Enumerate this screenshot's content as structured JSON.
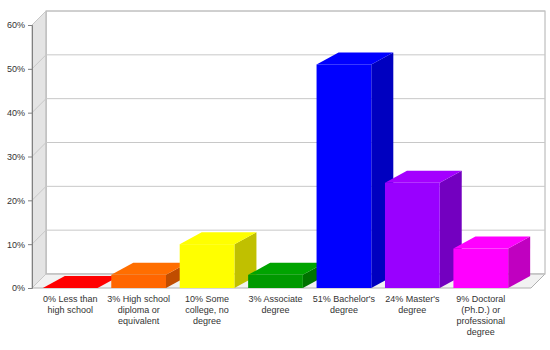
{
  "chart_data": {
    "type": "bar",
    "categories": [
      "0% Less than high school",
      "3% High school diploma or equivalent",
      "10% Some college, no degree",
      "3% Associate degree",
      "51% Bachelor's degree",
      "24% Master's degree",
      "9% Doctoral (Ph.D.) or professional degree"
    ],
    "values": [
      0,
      3,
      10,
      3,
      51,
      24,
      9
    ],
    "colors": [
      "#ff0000",
      "#ff6600",
      "#ffff00",
      "#009900",
      "#0000ff",
      "#9900ff",
      "#ff00ff"
    ],
    "ylim": [
      0,
      60
    ],
    "yticks": [
      {
        "value": 0,
        "label": "0%"
      },
      {
        "value": 10,
        "label": "10%"
      },
      {
        "value": 20,
        "label": "20%"
      },
      {
        "value": 30,
        "label": "30%"
      },
      {
        "value": 40,
        "label": "40%"
      },
      {
        "value": 50,
        "label": "50%"
      },
      {
        "value": 60,
        "label": "60%"
      }
    ],
    "grid": true
  }
}
